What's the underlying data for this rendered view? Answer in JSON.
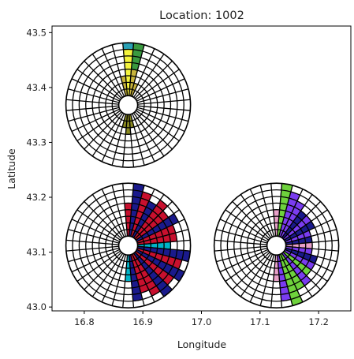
{
  "chart_data": {
    "type": "polar-glyph-map",
    "title": "Location: 1002",
    "xlabel": "Longitude",
    "ylabel": "Latitude",
    "xlim": [
      16.745,
      17.255
    ],
    "ylim": [
      42.993,
      43.512
    ],
    "xticks": [
      16.8,
      16.9,
      17.0,
      17.1,
      17.2
    ],
    "xtick_labels": [
      "16.8",
      "16.9",
      "17.0",
      "17.1",
      "17.2"
    ],
    "yticks": [
      43.0,
      43.1,
      43.2,
      43.3,
      43.4,
      43.5
    ],
    "ytick_labels": [
      "43.0",
      "43.1",
      "43.2",
      "43.3",
      "43.4",
      "43.5"
    ],
    "grid": false,
    "glyph_grid": {
      "sectors": 36,
      "rings": 8,
      "note_units": "bar values are ring levels 0-8 from inner hole to outer edge"
    },
    "glyphs": [
      {
        "lon": 16.875,
        "lat": 43.368,
        "bars": [
          {
            "sector_deg": 0,
            "value": 8,
            "color": "#2aa0b4"
          },
          {
            "sector_deg": 10,
            "value": 8,
            "color": "#3a9a40"
          },
          {
            "sector_deg": 0,
            "value": 7,
            "color": "#f4f43c"
          },
          {
            "sector_deg": 350,
            "value": 3,
            "color": "#c8b43c"
          },
          {
            "sector_deg": 10,
            "value": 4,
            "color": "#c8b43c"
          },
          {
            "sector_deg": 20,
            "value": 2,
            "color": "#c8b43c"
          },
          {
            "sector_deg": 180,
            "value": 3,
            "color": "#8a8a20"
          },
          {
            "sector_deg": 190,
            "value": 2,
            "color": "#8a8a20"
          },
          {
            "sector_deg": 170,
            "value": 2,
            "color": "#8a8a20"
          }
        ]
      },
      {
        "lon": 16.875,
        "lat": 43.112,
        "bars": [
          {
            "sector_deg": 0,
            "value": 5,
            "color": "#c8102e"
          },
          {
            "sector_deg": 10,
            "value": 8,
            "color": "#1a1a8c"
          },
          {
            "sector_deg": 20,
            "value": 7,
            "color": "#c8102e"
          },
          {
            "sector_deg": 30,
            "value": 6,
            "color": "#1a1a8c"
          },
          {
            "sector_deg": 40,
            "value": 7,
            "color": "#c8102e"
          },
          {
            "sector_deg": 50,
            "value": 6,
            "color": "#c8102e"
          },
          {
            "sector_deg": 60,
            "value": 7,
            "color": "#1a1a8c"
          },
          {
            "sector_deg": 70,
            "value": 6,
            "color": "#c8102e"
          },
          {
            "sector_deg": 80,
            "value": 6,
            "color": "#c8102e"
          },
          {
            "sector_deg": 90,
            "value": 5,
            "color": "#00b4c8"
          },
          {
            "sector_deg": 100,
            "value": 8,
            "color": "#1a1a8c"
          },
          {
            "sector_deg": 110,
            "value": 7,
            "color": "#c8102e"
          },
          {
            "sector_deg": 120,
            "value": 8,
            "color": "#1a1a8c"
          },
          {
            "sector_deg": 130,
            "value": 7,
            "color": "#c8102e"
          },
          {
            "sector_deg": 140,
            "value": 8,
            "color": "#1a1a8c"
          },
          {
            "sector_deg": 150,
            "value": 7,
            "color": "#c8102e"
          },
          {
            "sector_deg": 160,
            "value": 6,
            "color": "#c8102e"
          },
          {
            "sector_deg": 170,
            "value": 7,
            "color": "#1a1a8c"
          },
          {
            "sector_deg": 180,
            "value": 4,
            "color": "#00b4c8"
          }
        ],
        "inner_fill": {
          "from_deg": 0,
          "to_deg": 180,
          "value": 4,
          "color": "#00b4c8"
        }
      },
      {
        "lon": 17.128,
        "lat": 43.112,
        "bars": [
          {
            "sector_deg": 0,
            "value": 4,
            "color": "#e8a0c8"
          },
          {
            "sector_deg": 10,
            "value": 8,
            "color": "#6ed23c"
          },
          {
            "sector_deg": 20,
            "value": 7,
            "color": "#7a3cf0"
          },
          {
            "sector_deg": 30,
            "value": 6,
            "color": "#7a3cf0"
          },
          {
            "sector_deg": 40,
            "value": 5,
            "color": "#1a1a8c"
          },
          {
            "sector_deg": 50,
            "value": 5,
            "color": "#7a3cf0"
          },
          {
            "sector_deg": 60,
            "value": 5,
            "color": "#1a1a8c"
          },
          {
            "sector_deg": 70,
            "value": 4,
            "color": "#7a3cf0"
          },
          {
            "sector_deg": 80,
            "value": 4,
            "color": "#1a1a8c"
          },
          {
            "sector_deg": 90,
            "value": 4,
            "color": "#e8a0c8"
          },
          {
            "sector_deg": 100,
            "value": 4,
            "color": "#7a3cf0"
          },
          {
            "sector_deg": 110,
            "value": 5,
            "color": "#1a1a8c"
          },
          {
            "sector_deg": 120,
            "value": 5,
            "color": "#7a3cf0"
          },
          {
            "sector_deg": 130,
            "value": 5,
            "color": "#6ed23c"
          },
          {
            "sector_deg": 140,
            "value": 6,
            "color": "#7a3cf0"
          },
          {
            "sector_deg": 150,
            "value": 6,
            "color": "#6ed23c"
          },
          {
            "sector_deg": 160,
            "value": 8,
            "color": "#6ed23c"
          },
          {
            "sector_deg": 170,
            "value": 7,
            "color": "#7a3cf0"
          },
          {
            "sector_deg": 180,
            "value": 4,
            "color": "#e8a0c8"
          }
        ],
        "inner_fill": {
          "from_deg": 0,
          "to_deg": 180,
          "value": 3,
          "color": "#e8a0c8"
        }
      }
    ]
  }
}
